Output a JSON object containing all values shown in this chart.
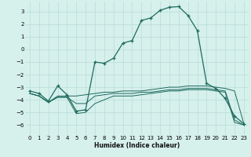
{
  "xlabel": "Humidex (Indice chaleur)",
  "bg_color": "#d6f0ec",
  "grid_color": "#b8ddd8",
  "line_color": "#1e6b5e",
  "x": [
    0,
    1,
    2,
    3,
    4,
    5,
    6,
    7,
    8,
    9,
    10,
    11,
    12,
    13,
    14,
    15,
    16,
    17,
    18,
    19,
    20,
    21,
    22,
    23
  ],
  "series1": [
    -3.3,
    -3.5,
    -4.1,
    -2.9,
    -3.6,
    -4.9,
    -4.8,
    -1.0,
    -1.1,
    -0.7,
    0.5,
    0.7,
    2.3,
    2.5,
    3.1,
    3.35,
    3.4,
    2.7,
    1.5,
    -2.7,
    -3.1,
    -3.9,
    -5.3,
    -5.9
  ],
  "series2": [
    -3.5,
    -3.7,
    -4.2,
    -3.7,
    -3.7,
    -3.7,
    -3.6,
    -3.5,
    -3.4,
    -3.4,
    -3.3,
    -3.3,
    -3.3,
    -3.2,
    -3.1,
    -3.0,
    -3.0,
    -2.9,
    -2.9,
    -2.9,
    -3.0,
    -3.1,
    -3.3,
    -5.9
  ],
  "series3": [
    -3.5,
    -3.7,
    -4.2,
    -3.8,
    -3.8,
    -4.3,
    -4.3,
    -3.7,
    -3.6,
    -3.5,
    -3.5,
    -3.5,
    -3.4,
    -3.4,
    -3.3,
    -3.2,
    -3.2,
    -3.1,
    -3.1,
    -3.1,
    -3.2,
    -3.3,
    -5.6,
    -6.0
  ],
  "series4": [
    -3.5,
    -3.7,
    -4.2,
    -3.8,
    -3.8,
    -5.1,
    -5.0,
    -4.3,
    -4.0,
    -3.7,
    -3.7,
    -3.7,
    -3.6,
    -3.5,
    -3.4,
    -3.3,
    -3.3,
    -3.2,
    -3.2,
    -3.2,
    -3.3,
    -3.4,
    -5.8,
    -6.0
  ],
  "ylim": [
    -6.8,
    3.8
  ],
  "xlim": [
    -0.5,
    23.5
  ],
  "yticks": [
    3,
    2,
    1,
    0,
    -1,
    -2,
    -3,
    -4,
    -5,
    -6
  ],
  "xticks": [
    0,
    1,
    2,
    3,
    4,
    5,
    6,
    7,
    8,
    9,
    10,
    11,
    12,
    13,
    14,
    15,
    16,
    17,
    18,
    19,
    20,
    21,
    22,
    23
  ]
}
